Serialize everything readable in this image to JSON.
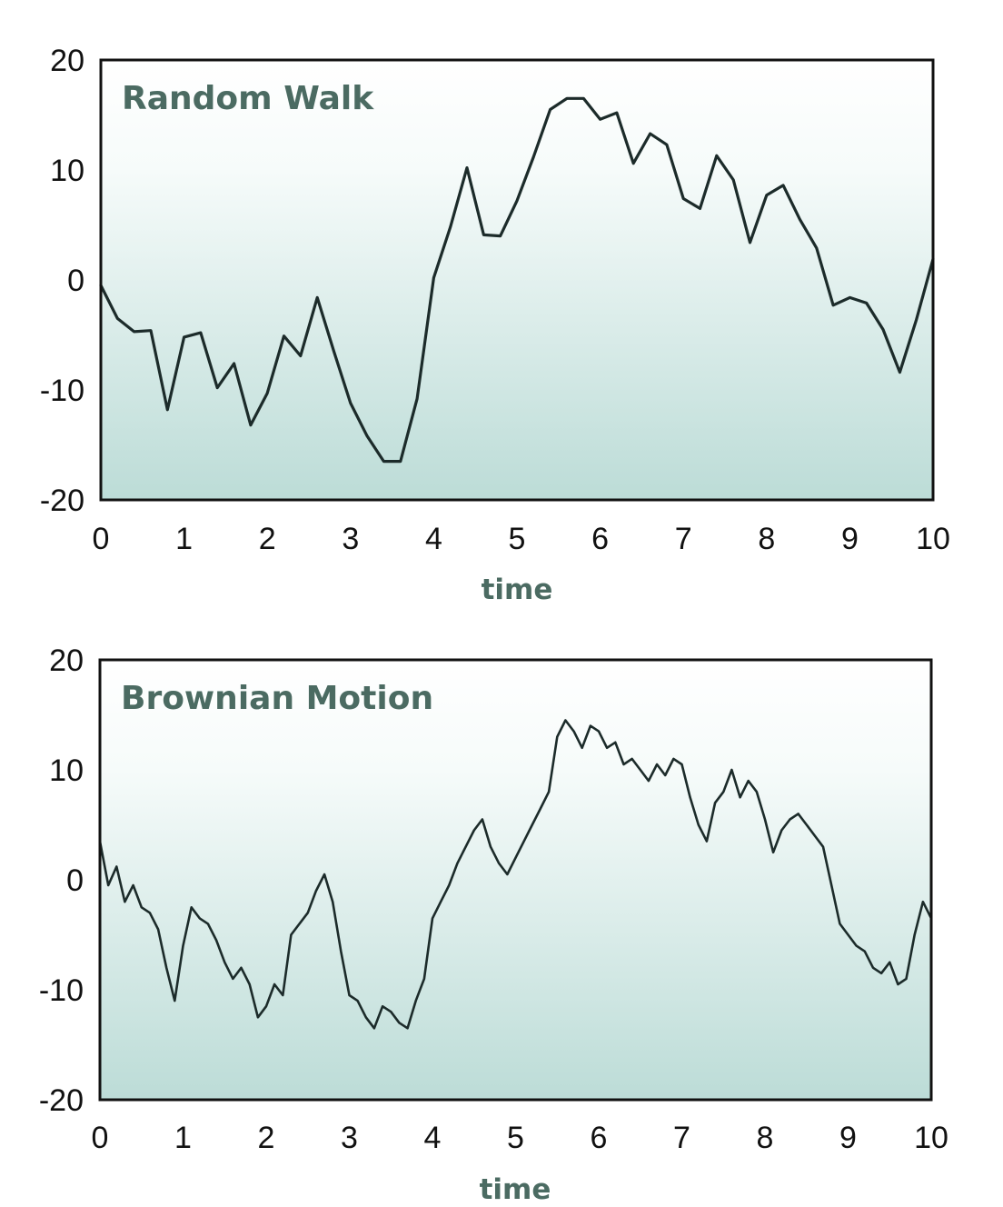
{
  "chart_data": [
    {
      "type": "line",
      "title": "Random Walk",
      "xlabel": "time",
      "ylabel": "",
      "xlim": [
        0,
        10
      ],
      "ylim": [
        -20,
        20
      ],
      "xticks": [
        "0",
        "1",
        "2",
        "3",
        "4",
        "5",
        "6",
        "7",
        "8",
        "9",
        "10"
      ],
      "yticks": [
        "20",
        "10",
        "0",
        "-10",
        "-20"
      ],
      "grid": false,
      "series": [
        {
          "color": "#1c2b2a",
          "x": [
            0,
            0.2,
            0.4,
            0.6,
            0.8,
            1.0,
            1.2,
            1.4,
            1.6,
            1.8,
            2.0,
            2.2,
            2.4,
            2.6,
            2.8,
            3.0,
            3.2,
            3.4,
            3.6,
            3.8,
            4.0,
            4.2,
            4.4,
            4.6,
            4.8,
            5.0,
            5.2,
            5.4,
            5.6,
            5.8,
            6.0,
            6.2,
            6.4,
            6.6,
            6.8,
            7.0,
            7.2,
            7.4,
            7.6,
            7.8,
            8.0,
            8.2,
            8.4,
            8.6,
            8.8,
            9.0,
            9.2,
            9.4,
            9.6,
            9.8,
            10.0
          ],
          "y": [
            -0.5,
            -3.5,
            -4.7,
            -4.6,
            -11.8,
            -5.2,
            -4.8,
            -9.8,
            -7.6,
            -13.2,
            -10.3,
            -5.1,
            -6.9,
            -1.6,
            -6.5,
            -11.2,
            -14.2,
            -16.5,
            -16.5,
            -10.8,
            0.2,
            4.8,
            10.2,
            4.1,
            4.0,
            7.2,
            11.2,
            15.5,
            16.5,
            16.5,
            14.6,
            15.2,
            10.6,
            13.3,
            12.3,
            7.4,
            6.5,
            11.3,
            9.1,
            3.4,
            7.7,
            8.6,
            5.5,
            2.9,
            -2.3,
            -1.6,
            -2.1,
            -4.5,
            -8.4,
            -3.6,
            1.9
          ]
        }
      ]
    },
    {
      "type": "line",
      "title": "Brownian Motion",
      "xlabel": "time",
      "ylabel": "",
      "xlim": [
        0,
        10
      ],
      "ylim": [
        -20,
        20
      ],
      "xticks": [
        "0",
        "1",
        "2",
        "3",
        "4",
        "5",
        "6",
        "7",
        "8",
        "9",
        "10"
      ],
      "yticks": [
        "20",
        "10",
        "0",
        "-10",
        "-20"
      ],
      "grid": false,
      "series": [
        {
          "color": "#1c2b2a",
          "x": [
            0,
            0.1,
            0.2,
            0.3,
            0.4,
            0.5,
            0.6,
            0.7,
            0.8,
            0.9,
            1.0,
            1.1,
            1.2,
            1.3,
            1.4,
            1.5,
            1.6,
            1.7,
            1.8,
            1.9,
            2.0,
            2.1,
            2.2,
            2.3,
            2.4,
            2.5,
            2.6,
            2.7,
            2.8,
            2.9,
            3.0,
            3.1,
            3.2,
            3.3,
            3.4,
            3.5,
            3.6,
            3.7,
            3.8,
            3.9,
            4.0,
            4.1,
            4.2,
            4.3,
            4.4,
            4.5,
            4.6,
            4.7,
            4.8,
            4.9,
            5.0,
            5.1,
            5.2,
            5.3,
            5.4,
            5.5,
            5.6,
            5.7,
            5.8,
            5.9,
            6.0,
            6.1,
            6.2,
            6.3,
            6.4,
            6.5,
            6.6,
            6.7,
            6.8,
            6.9,
            7.0,
            7.1,
            7.2,
            7.3,
            7.4,
            7.5,
            7.6,
            7.7,
            7.8,
            7.9,
            8.0,
            8.1,
            8.2,
            8.3,
            8.4,
            8.5,
            8.6,
            8.7,
            8.8,
            8.9,
            9.0,
            9.1,
            9.2,
            9.3,
            9.4,
            9.5,
            9.6,
            9.7,
            9.8,
            9.9,
            10.0
          ],
          "y": [
            3.5,
            -0.5,
            1.2,
            -2.0,
            -0.5,
            -2.5,
            -3.0,
            -4.5,
            -8.0,
            -11.0,
            -6.0,
            -2.5,
            -3.5,
            -4.0,
            -5.5,
            -7.5,
            -9.0,
            -8.0,
            -9.5,
            -12.5,
            -11.5,
            -9.5,
            -10.5,
            -5.0,
            -4.0,
            -3.0,
            -1.0,
            0.5,
            -2.0,
            -6.5,
            -10.5,
            -11.0,
            -12.5,
            -13.5,
            -11.5,
            -12.0,
            -13.0,
            -13.5,
            -11.0,
            -9.0,
            -3.5,
            -2.0,
            -0.5,
            1.5,
            3.0,
            4.5,
            5.5,
            3.0,
            1.5,
            0.5,
            2.0,
            3.5,
            5.0,
            6.5,
            8.0,
            13.0,
            14.5,
            13.5,
            12.0,
            14.0,
            13.5,
            12.0,
            12.5,
            10.5,
            11.0,
            10.0,
            9.0,
            10.5,
            9.5,
            11.0,
            10.5,
            7.5,
            5.0,
            3.5,
            7.0,
            8.0,
            10.0,
            7.5,
            9.0,
            8.0,
            5.5,
            2.5,
            4.5,
            5.5,
            6.0,
            5.0,
            4.0,
            3.0,
            -0.5,
            -4.0,
            -5.0,
            -6.0,
            -6.5,
            -8.0,
            -8.5,
            -7.5,
            -9.5,
            -9.0,
            -5.0,
            -2.0,
            -3.5
          ]
        }
      ]
    }
  ]
}
